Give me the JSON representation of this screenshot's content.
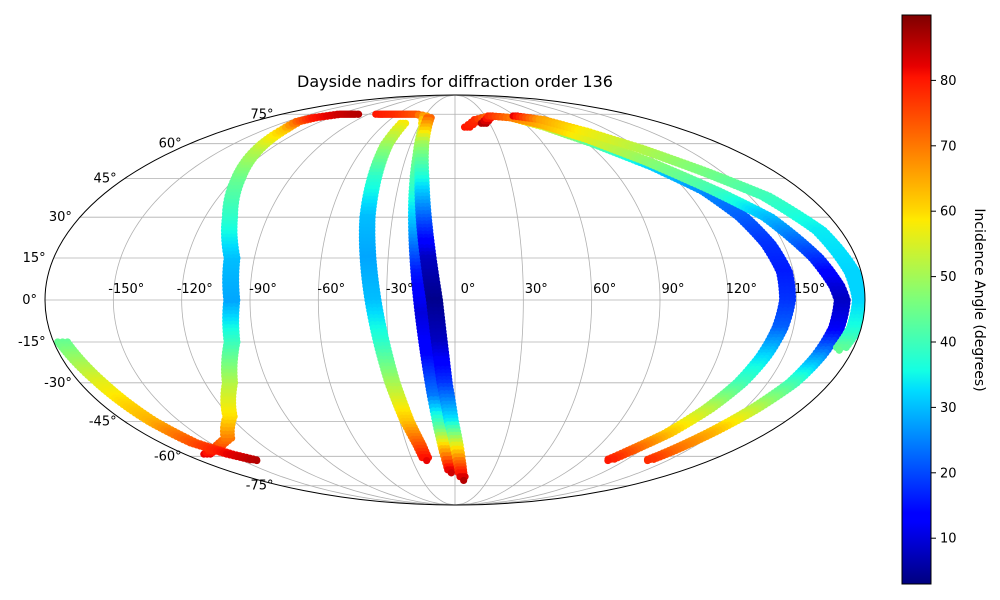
{
  "chart_data": {
    "type": "scatter",
    "projection": "mollweide",
    "title": "Dayside nadirs for diffraction order 136",
    "xlabel": "",
    "ylabel": "",
    "xlim": [
      -180,
      180
    ],
    "ylim": [
      -90,
      90
    ],
    "grid": true,
    "longitude_ticks": [
      -150,
      -120,
      -90,
      -60,
      -30,
      0,
      30,
      60,
      90,
      120,
      150
    ],
    "longitude_tick_labels": [
      "-150°",
      "-120°",
      "-90°",
      "-60°",
      "-30°",
      "0°",
      "30°",
      "60°",
      "90°",
      "120°",
      "150°"
    ],
    "latitude_ticks": [
      -75,
      -60,
      -45,
      -30,
      -15,
      0,
      15,
      30,
      45,
      60,
      75
    ],
    "latitude_tick_labels": [
      "-75°",
      "-60°",
      "-45°",
      "-30°",
      "-15°",
      "0°",
      "15°",
      "30°",
      "45°",
      "60°",
      "75°"
    ],
    "colormap": "jet",
    "colorbar": {
      "label": "Incidence Angle (degrees)",
      "range": [
        3,
        90
      ],
      "ticks": [
        10,
        20,
        30,
        40,
        50,
        60,
        70,
        80
      ],
      "tick_labels": [
        "10",
        "20",
        "30",
        "40",
        "50",
        "60",
        "70",
        "80"
      ],
      "placement": "right"
    },
    "series": [
      {
        "points": [
          [
            -165,
            -59,
            82
          ],
          [
            -150,
            -56,
            76
          ],
          [
            -135,
            -52,
            70
          ],
          [
            -120,
            -43,
            60
          ],
          [
            -108,
            -30,
            52
          ],
          [
            -100,
            -15,
            40
          ],
          [
            -98,
            0,
            28
          ],
          [
            -100,
            15,
            30
          ],
          [
            -108,
            30,
            38
          ],
          [
            -118,
            45,
            44
          ],
          [
            -128,
            58,
            52
          ],
          [
            -135,
            67,
            62
          ],
          [
            -140,
            71,
            72
          ],
          [
            -135,
            73,
            80
          ],
          [
            -120,
            75,
            84
          ],
          [
            -100,
            75,
            86
          ]
        ]
      },
      {
        "points": [
          [
            -176,
            -15,
            44
          ],
          [
            -170,
            -30,
            56
          ],
          [
            -165,
            -45,
            64
          ],
          [
            -160,
            -54,
            74
          ],
          [
            -150,
            -59,
            82
          ],
          [
            -140,
            -62,
            86
          ]
        ]
      },
      {
        "points": [
          [
            -80,
            75,
            80
          ],
          [
            -60,
            75,
            78
          ],
          [
            -40,
            75,
            74
          ],
          [
            -30,
            74,
            66
          ],
          [
            -25,
            68,
            56
          ],
          [
            -22,
            55,
            46
          ],
          [
            -20,
            40,
            38
          ],
          [
            -18,
            25,
            28
          ],
          [
            -16,
            10,
            16
          ],
          [
            -14,
            -5,
            10
          ],
          [
            -12,
            -20,
            14
          ],
          [
            -10,
            -35,
            24
          ],
          [
            -8,
            -48,
            44
          ],
          [
            -6,
            -58,
            66
          ],
          [
            -4,
            -65,
            80
          ],
          [
            -3,
            -68,
            84
          ]
        ]
      },
      {
        "points": [
          [
            -45,
            70,
            58
          ],
          [
            -46,
            60,
            50
          ],
          [
            -44,
            45,
            38
          ],
          [
            -42,
            30,
            30
          ],
          [
            -39,
            15,
            28
          ],
          [
            -36,
            0,
            30
          ],
          [
            -33,
            -15,
            38
          ],
          [
            -30,
            -30,
            50
          ],
          [
            -26,
            -45,
            62
          ],
          [
            -22,
            -55,
            74
          ],
          [
            -20,
            -62,
            82
          ]
        ]
      },
      {
        "points": [
          [
            -25,
            73,
            72
          ],
          [
            -22,
            60,
            50
          ],
          [
            -18,
            45,
            36
          ],
          [
            -15,
            30,
            22
          ],
          [
            -12,
            15,
            8
          ],
          [
            -9,
            0,
            4
          ],
          [
            -7,
            -15,
            8
          ],
          [
            -5,
            -30,
            18
          ],
          [
            -2,
            -45,
            34
          ],
          [
            1,
            -55,
            56
          ],
          [
            3,
            -62,
            70
          ],
          [
            5,
            -68,
            80
          ],
          [
            8,
            -72,
            86
          ]
        ]
      },
      {
        "points": [
          [
            10,
            68,
            80
          ],
          [
            20,
            72,
            78
          ],
          [
            35,
            74,
            70
          ],
          [
            55,
            73,
            62
          ],
          [
            75,
            68,
            54
          ],
          [
            95,
            60,
            42
          ],
          [
            115,
            50,
            32
          ],
          [
            130,
            40,
            26
          ],
          [
            138,
            30,
            22
          ],
          [
            143,
            20,
            18
          ],
          [
            146,
            10,
            16
          ],
          [
            146,
            0,
            18
          ],
          [
            144,
            -10,
            22
          ],
          [
            141,
            -20,
            32
          ],
          [
            137,
            -30,
            40
          ],
          [
            131,
            -40,
            52
          ],
          [
            123,
            -50,
            62
          ],
          [
            113,
            -58,
            74
          ],
          [
            108,
            -62,
            80
          ]
        ]
      },
      {
        "points": [
          [
            25,
            70,
            86
          ],
          [
            35,
            74,
            78
          ],
          [
            55,
            73,
            70
          ],
          [
            75,
            69,
            64
          ],
          [
            95,
            62,
            56
          ],
          [
            115,
            52,
            48
          ],
          [
            135,
            40,
            40
          ],
          [
            150,
            30,
            30
          ],
          [
            162,
            15,
            18
          ],
          [
            168,
            5,
            10
          ],
          [
            170,
            0,
            8
          ],
          [
            169,
            -10,
            12
          ],
          [
            166,
            -20,
            26
          ],
          [
            162,
            -30,
            40
          ],
          [
            155,
            -40,
            52
          ],
          [
            147,
            -50,
            64
          ],
          [
            140,
            -58,
            72
          ],
          [
            136,
            -62,
            78
          ]
        ]
      },
      {
        "points": [
          [
            60,
            74,
            82
          ],
          [
            80,
            72,
            66
          ],
          [
            100,
            66,
            58
          ],
          [
            120,
            58,
            52
          ],
          [
            140,
            48,
            46
          ],
          [
            158,
            38,
            40
          ],
          [
            170,
            25,
            34
          ],
          [
            176,
            10,
            32
          ],
          [
            178,
            0,
            32
          ],
          [
            177,
            -10,
            36
          ],
          [
            174,
            -18,
            44
          ]
        ]
      }
    ]
  }
}
